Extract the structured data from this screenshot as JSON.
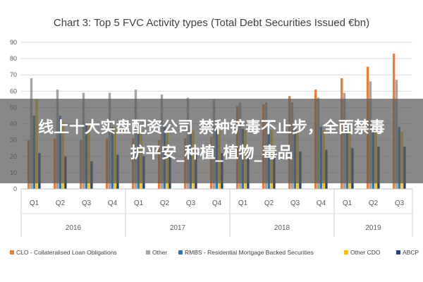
{
  "chart_data": {
    "type": "bar",
    "title": "Chart 3: Top 5 FVC Activity types (Total Debt Securities Issued €bn)",
    "xlabel": "",
    "ylabel": "",
    "ylim": [
      0,
      90
    ],
    "yticks": [
      0,
      10,
      20,
      30,
      40,
      50,
      60,
      70,
      80,
      90
    ],
    "grid": true,
    "legend_position": "bottom",
    "categories": [
      "Q1",
      "Q2",
      "Q3",
      "Q4",
      "Q1",
      "Q2",
      "Q3",
      "Q4",
      "Q1",
      "Q2",
      "Q3",
      "Q4",
      "Q1",
      "Q2",
      "Q3"
    ],
    "groups": [
      {
        "label": "2016",
        "count": 4
      },
      {
        "label": "2017",
        "count": 4
      },
      {
        "label": "2018",
        "count": 4
      },
      {
        "label": "2019",
        "count": 3
      }
    ],
    "series": [
      {
        "name": "CLO - Collateralised Loan Obligations",
        "color": "#ed7d31",
        "values": [
          30,
          31,
          30,
          31,
          31,
          30,
          31,
          32,
          51,
          52,
          57,
          61,
          68,
          75,
          83
        ]
      },
      {
        "name": "Other",
        "color": "#a5a5a5",
        "values": [
          68,
          61,
          59,
          59,
          61,
          58,
          56,
          55,
          53,
          53,
          53,
          56,
          59,
          66,
          67
        ]
      },
      {
        "name": "RMBS - Residential Mortgage Backed Securities",
        "color": "#2e75b6",
        "values": [
          45,
          45,
          40,
          38,
          40,
          40,
          39,
          38,
          37,
          37,
          37,
          38,
          38,
          38,
          38
        ]
      },
      {
        "name": "Other CDO",
        "color": "#ffc000",
        "values": [
          55,
          41,
          40,
          38,
          37,
          36,
          36,
          36,
          36,
          36,
          36,
          36,
          36,
          36,
          35
        ]
      },
      {
        "name": "ABCP",
        "color": "#264478",
        "values": [
          22,
          20,
          17,
          21,
          20,
          20,
          21,
          22,
          22,
          23,
          23,
          24,
          25,
          26,
          26
        ]
      }
    ]
  },
  "overlay": {
    "line1": "线上十大实盘配资公司 禁种铲毒不止步，全面禁毒",
    "line2": "护平安_种植_植物_毒品"
  }
}
